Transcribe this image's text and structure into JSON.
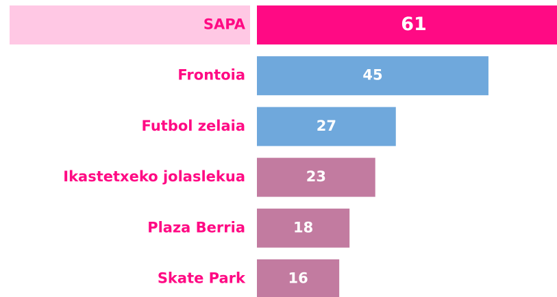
{
  "chart_data": {
    "type": "bar",
    "orientation": "horizontal",
    "categories": [
      "SAPA",
      "Frontoia",
      "Futbol zelaia",
      "Ikastetxeko jolaslekua",
      "Plaza Berria",
      "Skate Park"
    ],
    "values": [
      61,
      45,
      27,
      23,
      18,
      16
    ],
    "colors": [
      "#ff0a84",
      "#6fa8dc",
      "#6fa8dc",
      "#c27ba0",
      "#c27ba0",
      "#c27ba0"
    ],
    "highlight_category_background": "#ffc8e4",
    "label_color": "#ff0a84"
  }
}
